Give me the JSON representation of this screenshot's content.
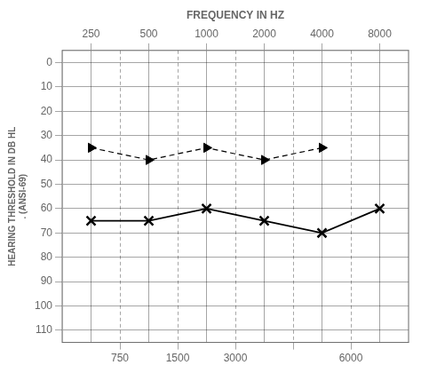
{
  "chart_data": {
    "type": "line",
    "xlabel": "FREQUENCY IN HZ",
    "ylabel": [
      "HEARING THRESHOLD IN DB HL",
      ". (ANSI-69)"
    ],
    "categories": [
      "250",
      "500",
      "1000",
      "2000",
      "4000",
      "8000"
    ],
    "x2_categories": [
      "750",
      "1500",
      "3000",
      null,
      "6000"
    ],
    "series": [
      {
        "values": [
          65,
          65,
          60,
          65,
          70,
          60
        ],
        "color": "#000000",
        "marker": "x",
        "line_style": "solid"
      },
      {
        "values": [
          35,
          40,
          35,
          40,
          35,
          null
        ],
        "color": "#000000",
        "marker": "triangle_right",
        "line_style": "dashed"
      }
    ],
    "ylim": [
      115,
      -5
    ],
    "yticks": [
      0,
      10,
      20,
      30,
      40,
      50,
      60,
      70,
      80,
      90,
      100,
      110
    ],
    "grid": true
  }
}
